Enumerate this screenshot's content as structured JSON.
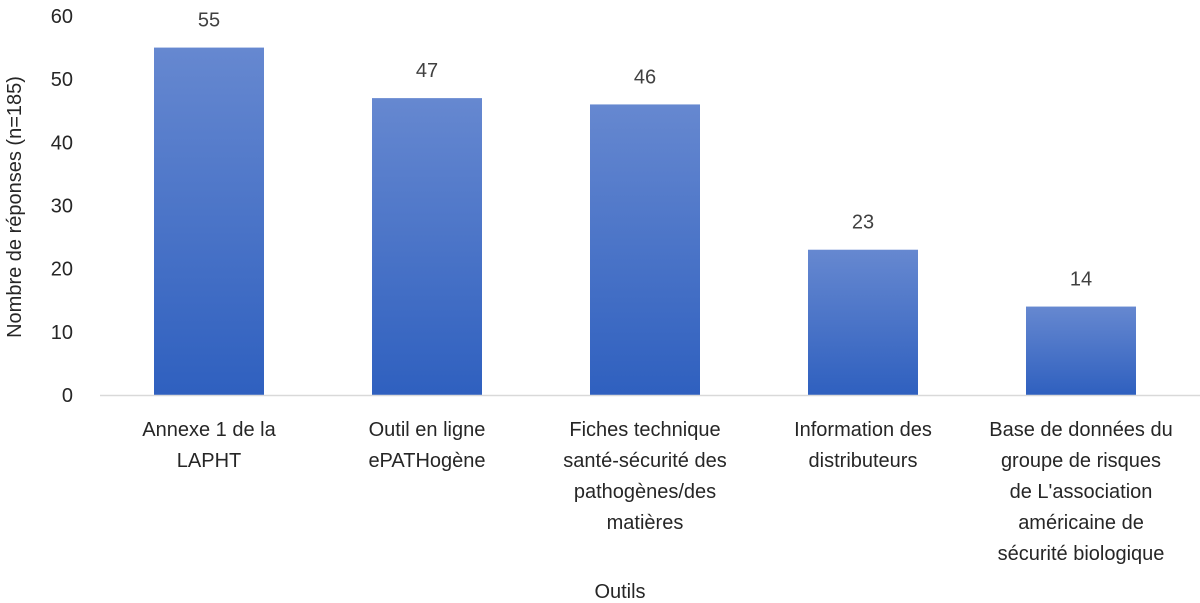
{
  "chart_data": {
    "type": "bar",
    "title": "",
    "xlabel": "Outils",
    "ylabel": "Nombre de réponses (n=185)",
    "ylim": [
      0,
      60
    ],
    "yticks": [
      0,
      10,
      20,
      30,
      40,
      50,
      60
    ],
    "grid": false,
    "legend": "none",
    "categories": [
      [
        "Annexe 1 de la",
        "LAPHT"
      ],
      [
        "Outil en ligne",
        "ePATHogène"
      ],
      [
        "Fiches technique",
        "santé-sécurité des",
        "pathogènes/des",
        "matières"
      ],
      [
        "Information des",
        "distributeurs"
      ],
      [
        "Base de données du",
        "groupe de risques",
        "de L'association",
        "américaine de",
        "sécurité biologique"
      ]
    ],
    "values": [
      55,
      47,
      46,
      23,
      14
    ],
    "data_labels": [
      "55",
      "47",
      "46",
      "23",
      "14"
    ],
    "colors": {
      "bar_top": "#6688d0",
      "bar_bottom": "#2f60bf",
      "axis": "#d9d9d9"
    }
  }
}
